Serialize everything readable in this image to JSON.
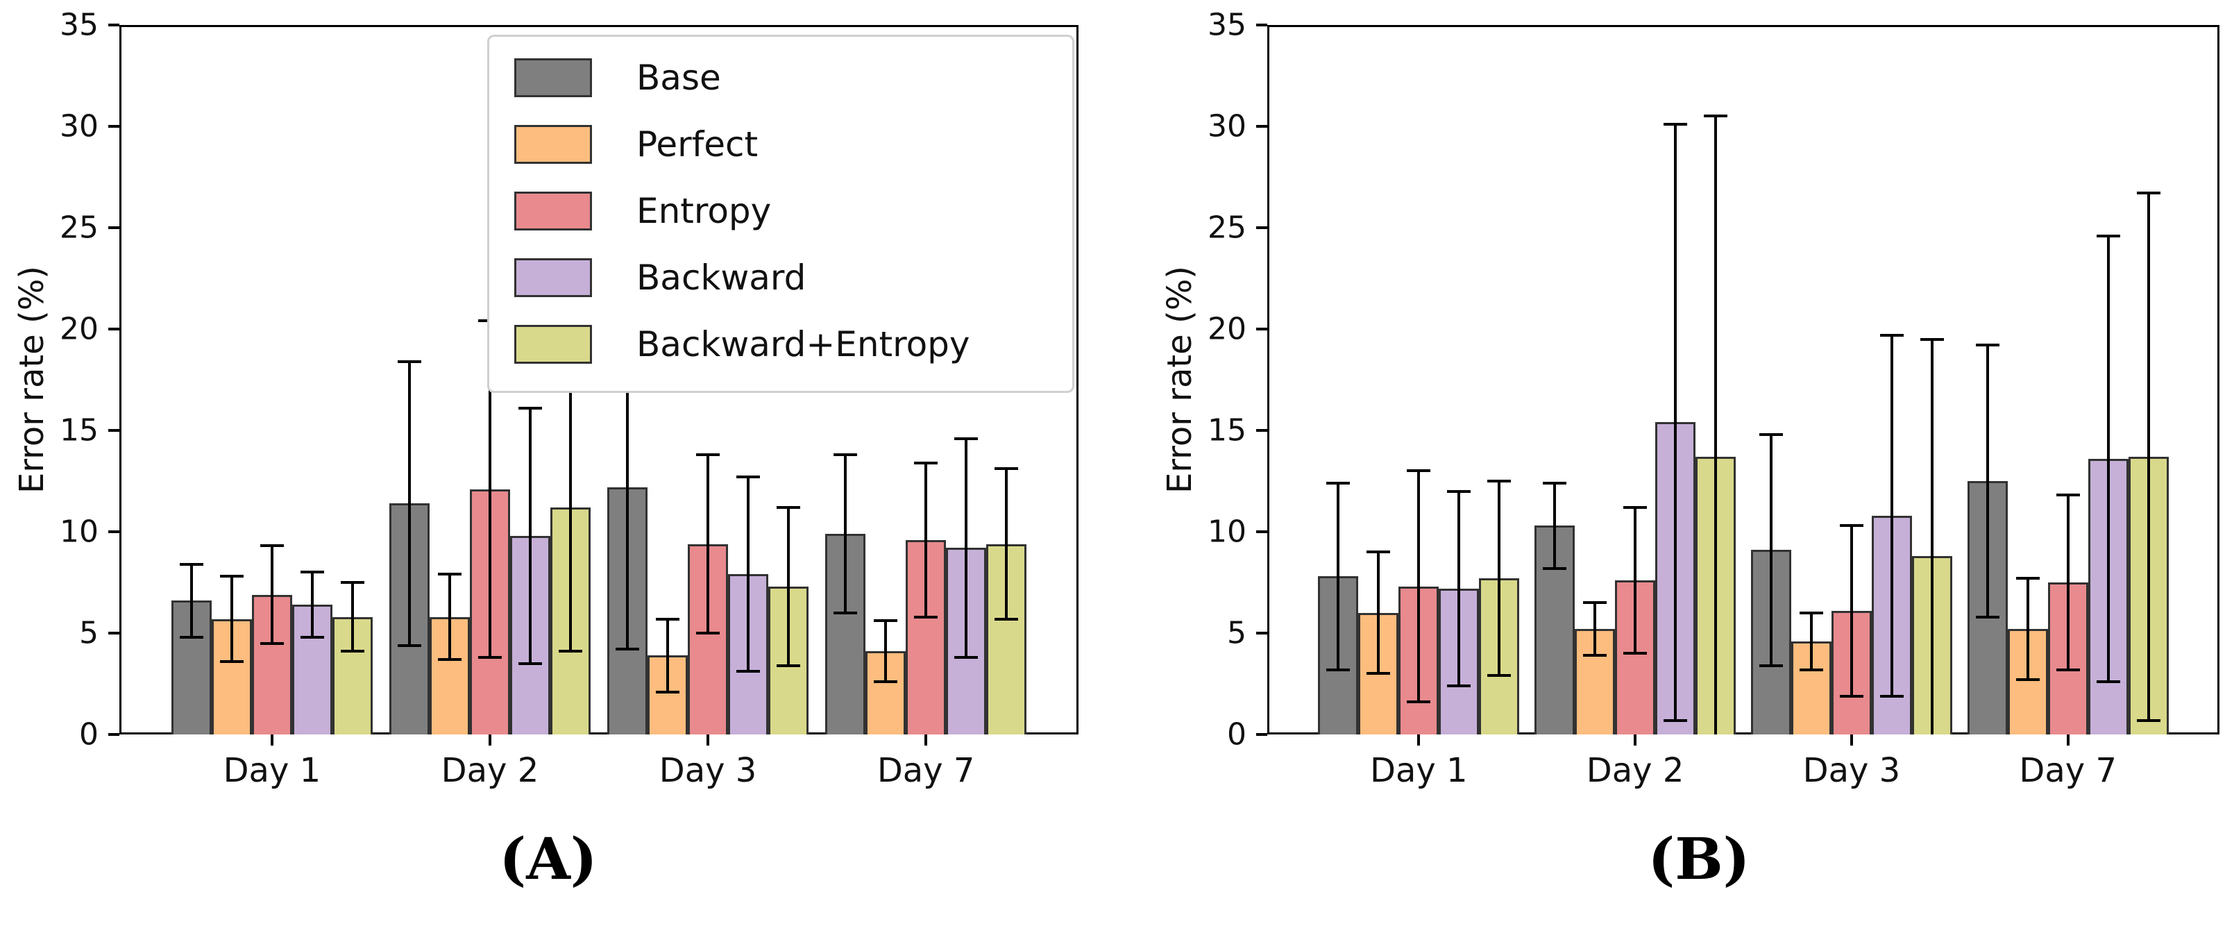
{
  "figure": {
    "background": "#ffffff"
  },
  "axis": {
    "ylabel": "Error rate (%)",
    "yticks": [
      0,
      5,
      10,
      15,
      20,
      25,
      30,
      35
    ],
    "ylim": [
      0,
      35
    ],
    "categories": [
      "Day 1",
      "Day 2",
      "Day 3",
      "Day 7"
    ]
  },
  "legend": {
    "entries": [
      {
        "label": "Base",
        "color": "#7f7f7f"
      },
      {
        "label": "Perfect",
        "color": "#fcbd7e"
      },
      {
        "label": "Entropy",
        "color": "#e88a8e"
      },
      {
        "label": "Backward",
        "color": "#c6b0d8"
      },
      {
        "label": "Backward+Entropy",
        "color": "#d9d98b"
      }
    ]
  },
  "chart_data": [
    {
      "type": "bar",
      "caption": "(A)",
      "ylabel": "Error rate (%)",
      "ylim": [
        0,
        35
      ],
      "grid": false,
      "legend_position": "upper right inside",
      "categories": [
        "Day 1",
        "Day 2",
        "Day 3",
        "Day 7"
      ],
      "series": [
        {
          "name": "Base",
          "color": "#7f7f7f",
          "values": [
            6.6,
            11.4,
            12.2,
            9.9
          ],
          "errors": [
            1.8,
            7.0,
            8.0,
            3.9
          ]
        },
        {
          "name": "Perfect",
          "color": "#fcbd7e",
          "values": [
            5.7,
            5.8,
            3.9,
            4.1
          ],
          "errors": [
            2.1,
            2.1,
            1.8,
            1.5
          ]
        },
        {
          "name": "Entropy",
          "color": "#e88a8e",
          "values": [
            6.9,
            12.1,
            9.4,
            9.6
          ],
          "errors": [
            2.4,
            8.3,
            4.4,
            3.8
          ]
        },
        {
          "name": "Backward",
          "color": "#c6b0d8",
          "values": [
            6.4,
            9.8,
            7.9,
            9.2
          ],
          "errors": [
            1.6,
            6.3,
            4.8,
            5.4
          ]
        },
        {
          "name": "Backward+Entropy",
          "color": "#d9d98b",
          "values": [
            5.8,
            11.2,
            7.3,
            9.4
          ],
          "errors": [
            1.7,
            7.1,
            3.9,
            3.7
          ]
        }
      ]
    },
    {
      "type": "bar",
      "caption": "(B)",
      "ylabel": "Error rate (%)",
      "ylim": [
        0,
        35
      ],
      "grid": false,
      "legend_position": "none",
      "categories": [
        "Day 1",
        "Day 2",
        "Day 3",
        "Day 7"
      ],
      "series": [
        {
          "name": "Base",
          "color": "#7f7f7f",
          "values": [
            7.8,
            10.3,
            9.1,
            12.5
          ],
          "errors": [
            4.6,
            2.1,
            5.7,
            6.7
          ]
        },
        {
          "name": "Perfect",
          "color": "#fcbd7e",
          "values": [
            6.0,
            5.2,
            4.6,
            5.2
          ],
          "errors": [
            3.0,
            1.3,
            1.4,
            2.5
          ]
        },
        {
          "name": "Entropy",
          "color": "#e88a8e",
          "values": [
            7.3,
            7.6,
            6.1,
            7.5
          ],
          "errors": [
            5.7,
            3.6,
            4.2,
            4.3
          ]
        },
        {
          "name": "Backward",
          "color": "#c6b0d8",
          "values": [
            7.2,
            15.4,
            10.8,
            13.6
          ],
          "errors": [
            4.8,
            14.7,
            8.9,
            11.0
          ]
        },
        {
          "name": "Backward+Entropy",
          "color": "#d9d98b",
          "values": [
            7.7,
            13.7,
            8.8,
            13.7
          ],
          "errors": [
            4.8,
            16.8,
            10.7,
            13.0
          ]
        }
      ]
    }
  ]
}
